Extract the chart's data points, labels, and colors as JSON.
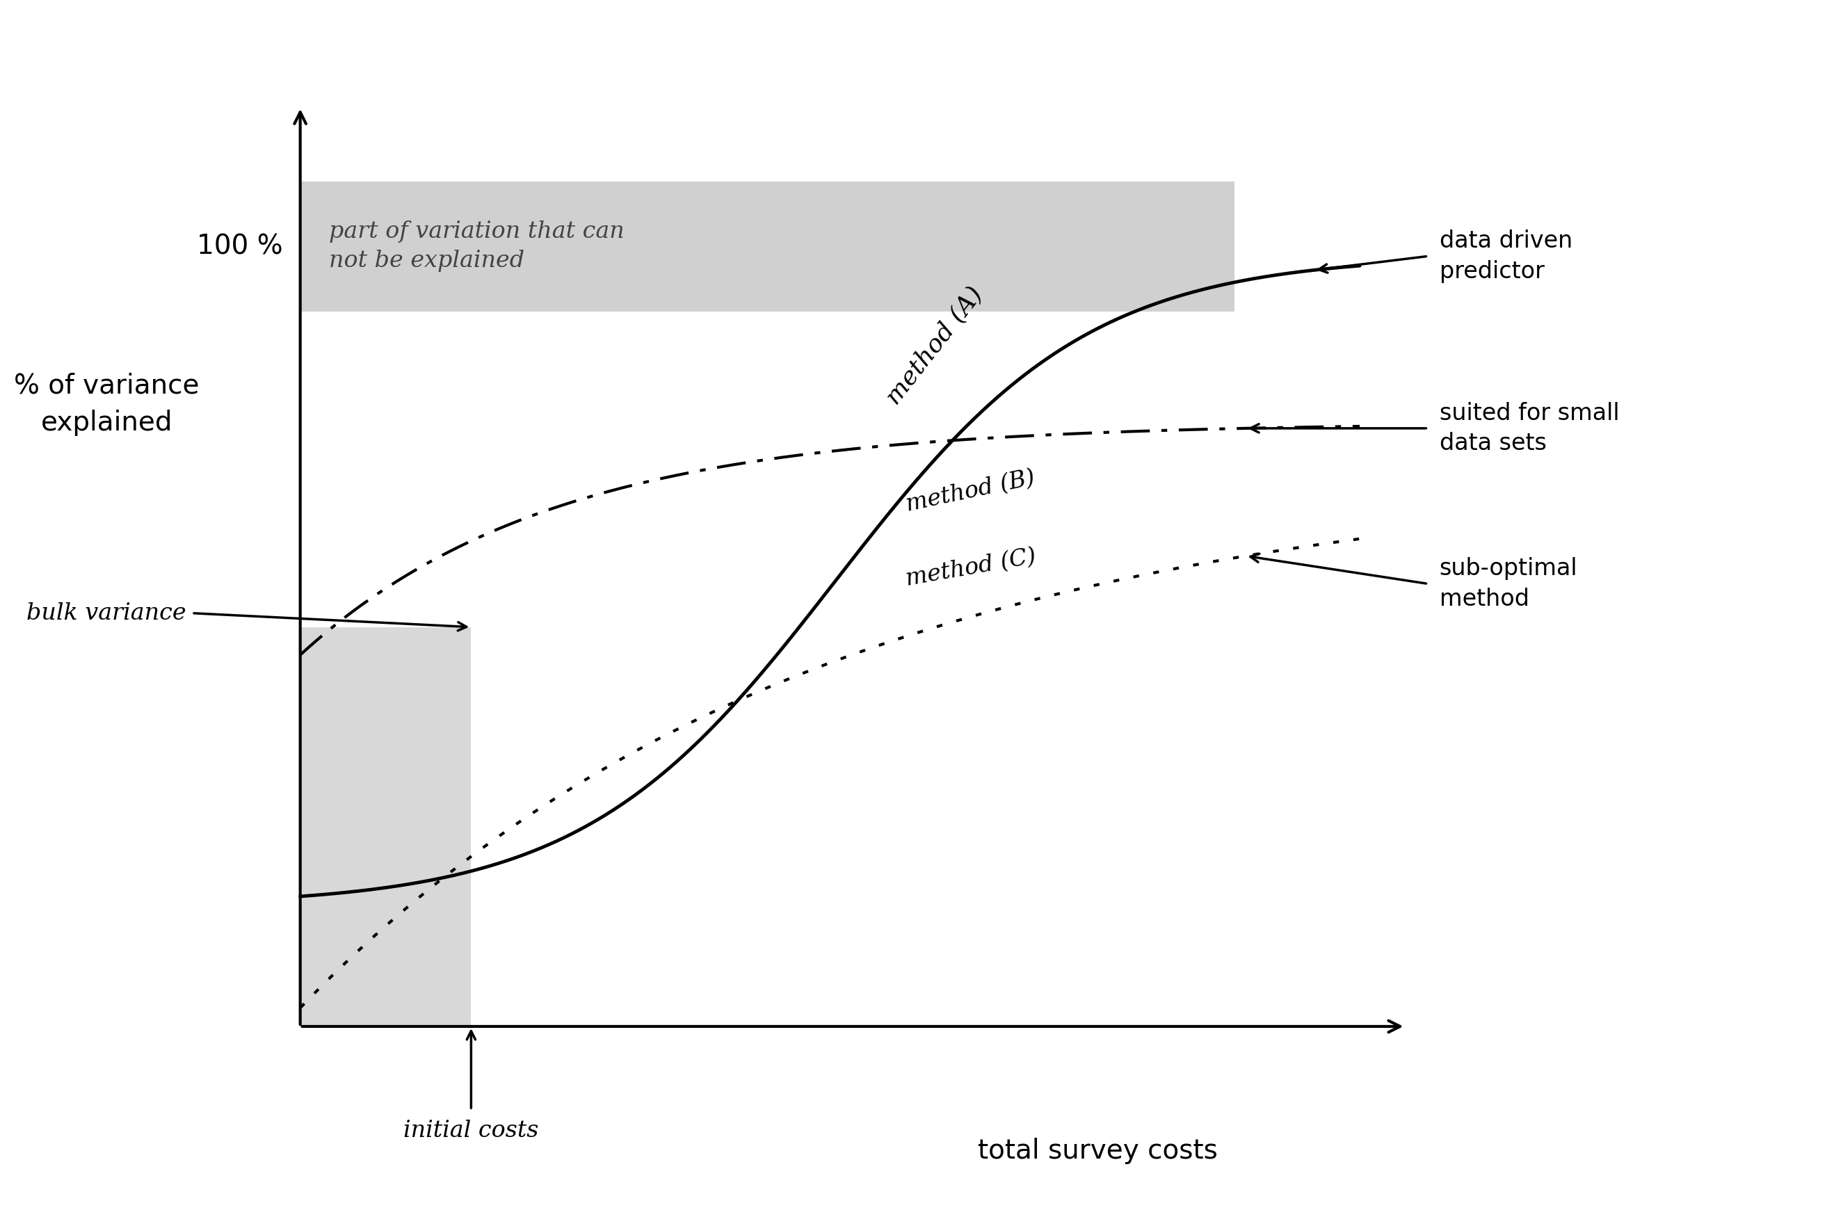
{
  "title": "",
  "xlabel": "total survey costs",
  "ylabel": "% of variance\nexplained",
  "xlim": [
    0,
    10
  ],
  "ylim": [
    0,
    10
  ],
  "hundred_pct_y": 8.2,
  "bulk_variance_y": 4.8,
  "initial_costs_x": 2.0,
  "axis_origin_x": 0.5,
  "axis_origin_y": 0.5,
  "gray_top_color": "#d0d0d0",
  "gray_bottom_color": "#d8d8d8",
  "background_color": "#ffffff",
  "method_A_label": "method (A)",
  "method_B_label": "method (B)",
  "method_C_label": "method (C)",
  "annotation_data_driven": "data driven\npredictor",
  "annotation_suited": "suited for small\ndata sets",
  "annotation_suboptimal": "sub-optimal\nmethod",
  "annotation_bulk": "bulk variance",
  "annotation_initial": "initial costs",
  "annotation_unexplained": "part of variation that can\nnot be explained",
  "hundred_pct_label": "100 %"
}
